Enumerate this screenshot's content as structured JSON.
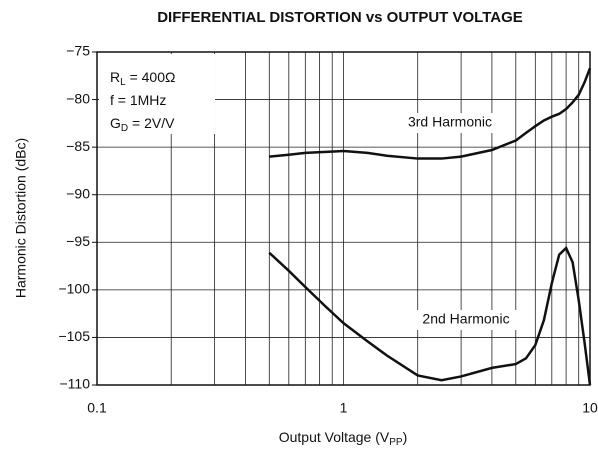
{
  "chart_data": {
    "type": "line",
    "title": "DIFFERENTIAL DISTORTION vs OUTPUT VOLTAGE",
    "x_label": [
      "Output Voltage (V",
      "PP",
      ")"
    ],
    "y_label": "Harmonic Distortion (dBc)",
    "annotations": [
      [
        "R",
        "L",
        " = 400Ω"
      ],
      [
        "f = 1MHz"
      ],
      [
        "G",
        "D",
        " = 2V/V"
      ]
    ],
    "x": [
      0.5,
      0.6,
      0.7,
      0.85,
      1,
      1.25,
      1.5,
      2,
      2.5,
      3,
      4,
      5,
      5.5,
      6,
      6.5,
      7,
      7.5,
      8,
      8.5,
      9,
      9.5,
      10
    ],
    "series": [
      {
        "name": "3rd Harmonic",
        "color": "#111111",
        "values": [
          -86.0,
          -85.8,
          -85.6,
          -85.5,
          -85.4,
          -85.6,
          -85.9,
          -86.2,
          -86.2,
          -86.0,
          -85.3,
          -84.3,
          -83.5,
          -82.8,
          -82.2,
          -81.8,
          -81.5,
          -81.0,
          -80.3,
          -79.5,
          -78.2,
          -76.7
        ]
      },
      {
        "name": "2nd Harmonic",
        "color": "#111111",
        "values": [
          -96.1,
          -98.0,
          -99.7,
          -101.8,
          -103.5,
          -105.4,
          -106.9,
          -109.0,
          -109.5,
          -109.1,
          -108.2,
          -107.8,
          -107.2,
          -105.8,
          -103.2,
          -99.3,
          -96.3,
          -95.6,
          -97.1,
          -101.1,
          -105.5,
          -110.0
        ]
      }
    ],
    "xlim": [
      0.1,
      10
    ],
    "xscale": "log",
    "xticks": [
      0.1,
      1,
      10
    ],
    "ylim": [
      -110,
      -75
    ],
    "yticks": [
      {
        "value": -110,
        "label": "−110"
      },
      {
        "value": -105,
        "label": "−105"
      },
      {
        "value": -100,
        "label": "−100"
      },
      {
        "value": -95,
        "label": "−95"
      },
      {
        "value": -90,
        "label": "−90"
      },
      {
        "value": -85,
        "label": "−85"
      },
      {
        "value": -80,
        "label": "−80"
      },
      {
        "value": -75,
        "label": "−75"
      }
    ],
    "grid": true,
    "minor_grid": true
  }
}
